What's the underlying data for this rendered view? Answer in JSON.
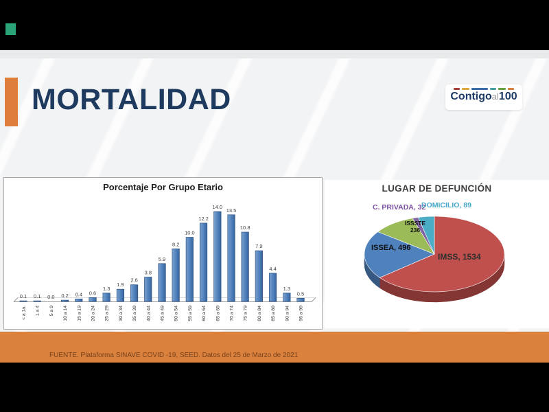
{
  "slide": {
    "title": "MORTALIDAD",
    "footer": "FUENTE. Plataforma SINAVE COVID -19, SEED. Datos del 25 de Marzo de 2021"
  },
  "logo": {
    "brand_1": "Contigo",
    "brand_mid": "al",
    "brand_2": "100",
    "dash_colors": [
      "#a8403c",
      "#dda63d",
      "#3a6ca8",
      "#45a1a1",
      "#66a23f",
      "#d97f3e"
    ]
  },
  "colors": {
    "accent_orange": "#dd7e3b",
    "band_orange": "#d9813d",
    "title_navy": "#1e3a5f",
    "bar_blue": "#4f81bd"
  },
  "chart_data": [
    {
      "type": "bar",
      "title": "Porcentaje Por Grupo Etario",
      "categories": [
        "< a 1a.",
        "1 a 4",
        "5 a 9",
        "10 a 14",
        "15 a 19",
        "20 a 24",
        "25 a 29",
        "30 a 34",
        "35 a 39",
        "40 a 44",
        "45 a 49",
        "50 a 54",
        "55 a 59",
        "60 a 64",
        "65 a 69",
        "70 a 74",
        "75 a 79",
        "80 a 84",
        "85 a 89",
        "90 a 94",
        "95 a 99"
      ],
      "values": [
        0.1,
        0.1,
        0.0,
        0.2,
        0.4,
        0.6,
        1.3,
        1.9,
        2.6,
        3.8,
        5.9,
        8.2,
        10.0,
        12.2,
        14.0,
        13.5,
        10.8,
        7.9,
        4.4,
        1.3,
        0.5
      ],
      "bar_color": "#4f81bd",
      "ylim": [
        0,
        15
      ],
      "grid": false,
      "value_labels": true,
      "xlabel": "",
      "ylabel": ""
    },
    {
      "type": "pie",
      "title": "LUGAR DE DEFUNCIÓN",
      "labels": [
        "IMSS",
        "ISSEA",
        "ISSSTE",
        "C. PRIVADA",
        "DOMICILIO"
      ],
      "values": [
        1534,
        496,
        236,
        32,
        89
      ],
      "colors": [
        "#c0504d",
        "#4f81bd",
        "#9bbb59",
        "#8064a2",
        "#4bacc6"
      ],
      "label_texts": [
        "IMSS, 1534",
        "ISSEA, 496",
        "ISSSTE 236",
        "C. PRIVADA, 32",
        "DOMICILIO, 89"
      ],
      "effect": "3d",
      "start_angle_deg": 0,
      "direction": "clockwise",
      "legend": "none"
    }
  ]
}
